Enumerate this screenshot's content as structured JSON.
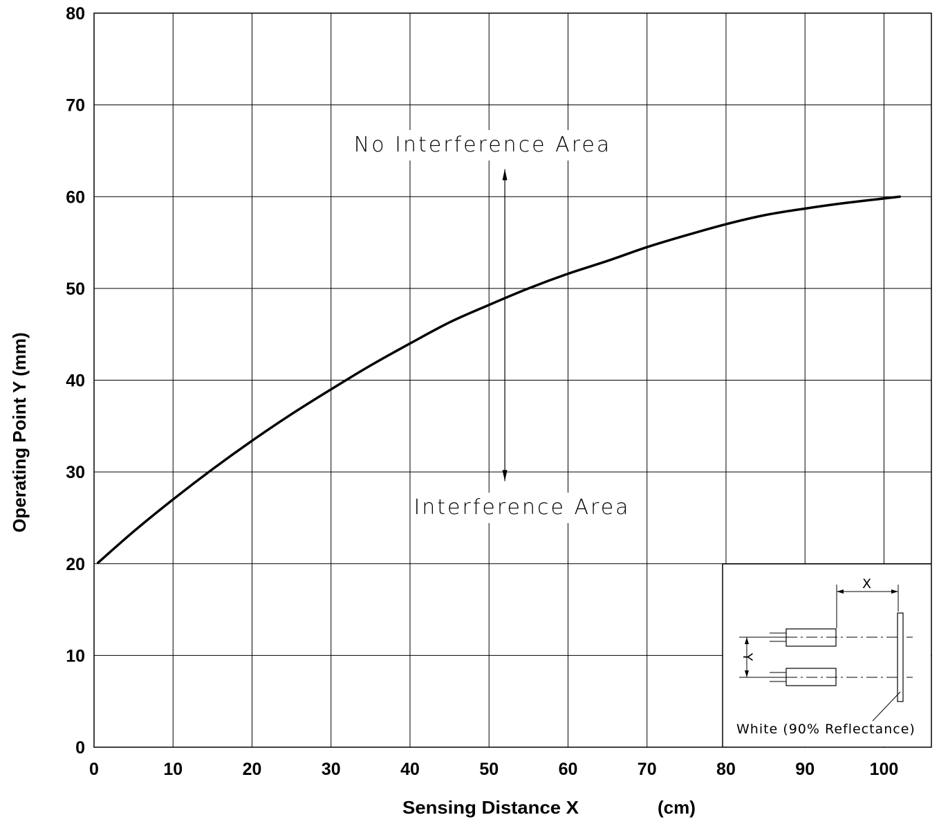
{
  "chart_data": {
    "type": "line",
    "xlabel": "Sensing Distance  X",
    "xunit": "(cm)",
    "ylabel": "Operating Point  Y   (mm)",
    "xlim": [
      0,
      106
    ],
    "ylim": [
      0,
      80
    ],
    "xticks": [
      0,
      10,
      20,
      30,
      40,
      50,
      60,
      70,
      80,
      90,
      100
    ],
    "yticks": [
      0,
      10,
      20,
      30,
      40,
      50,
      60,
      70,
      80
    ],
    "grid": true,
    "series": [
      {
        "x": [
          0.5,
          5,
          10,
          15,
          20,
          25,
          30,
          35,
          40,
          45,
          50,
          55,
          60,
          65,
          70,
          75,
          80,
          85,
          90,
          95,
          102
        ],
        "y": [
          20.1,
          23.5,
          27.0,
          30.3,
          33.4,
          36.3,
          39.0,
          41.6,
          44.0,
          46.3,
          48.2,
          50.0,
          51.6,
          53.0,
          54.5,
          55.8,
          57.0,
          58.0,
          58.7,
          59.3,
          60.0
        ]
      }
    ],
    "annotations": {
      "upper": "No Interference Area",
      "lower": "Interference Area",
      "arrow_x": 52,
      "arrow_y_top": 63,
      "arrow_y_bottom": 29
    },
    "inset": {
      "dimension_x": "X",
      "dimension_y": "Y",
      "caption": "White (90% Reflectance)"
    }
  }
}
